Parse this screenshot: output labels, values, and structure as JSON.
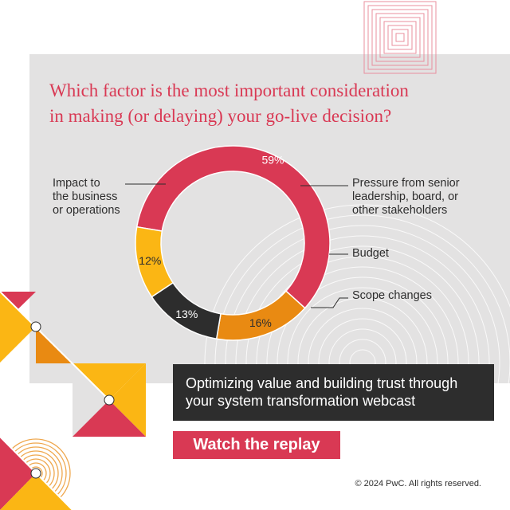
{
  "question": "Which factor is the most important consideration\nin making (or delaying) your go-live decision?",
  "chart_data": {
    "type": "pie",
    "title": "Which factor is the most important consideration in making (or delaying) your go-live decision?",
    "series": [
      {
        "label": "Impact to\nthe business\nor operations",
        "value": 59,
        "display": "59%",
        "color": "#d93954"
      },
      {
        "label": "Pressure from senior\nleadership, board, or\nother stakeholders",
        "value": 16,
        "display": "16%",
        "color": "#e98a12"
      },
      {
        "label": "Budget",
        "value": 13,
        "display": "13%",
        "color": "#2d2d2d"
      },
      {
        "label": "Scope changes",
        "value": 12,
        "display": "12%",
        "color": "#fbb614"
      }
    ]
  },
  "webcast": {
    "title": "Optimizing value and building trust through\nyour system transformation webcast"
  },
  "cta": {
    "label": "Watch the replay"
  },
  "footer": {
    "copyright": "© 2024 PwC. All rights reserved."
  },
  "colors": {
    "rose": "#d93954",
    "orange": "#e98a12",
    "yellow": "#fbb614",
    "dark": "#2d2d2d",
    "panel": "#e3e2e2"
  }
}
